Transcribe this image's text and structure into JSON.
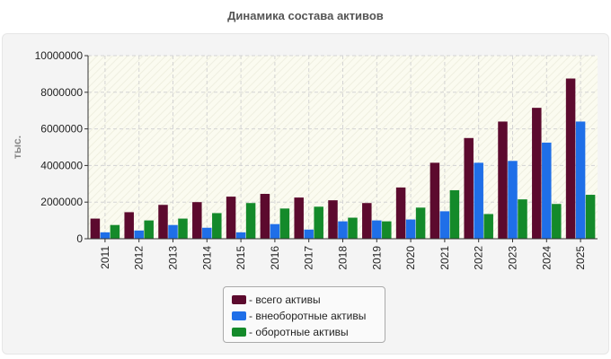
{
  "title": "Динамика состава активов",
  "chart_data": {
    "type": "bar",
    "title": "Динамика состава активов",
    "ylabel": "тыс.",
    "xlabel": "",
    "ylim": [
      0,
      10000000
    ],
    "yticks": [
      "0",
      "2000000",
      "4000000",
      "6000000",
      "8000000",
      "10000000"
    ],
    "categories": [
      "2011",
      "2012",
      "2013",
      "2014",
      "2015",
      "2016",
      "2017",
      "2018",
      "2019",
      "2020",
      "2021",
      "2022",
      "2023",
      "2024",
      "2025"
    ],
    "series": [
      {
        "name": "- всего активы",
        "color": "#5c0a2e",
        "values": [
          1100000,
          1450000,
          1850000,
          2000000,
          2300000,
          2450000,
          2250000,
          2100000,
          1950000,
          2800000,
          4150000,
          5500000,
          6400000,
          7150000,
          8750000
        ]
      },
      {
        "name": "- внеоборотные активы",
        "color": "#1f6fe8",
        "values": [
          350000,
          450000,
          750000,
          600000,
          350000,
          800000,
          500000,
          950000,
          1000000,
          1050000,
          1500000,
          4150000,
          4250000,
          5250000,
          6400000
        ]
      },
      {
        "name": "- оборотные активы",
        "color": "#148a2a",
        "values": [
          750000,
          1000000,
          1100000,
          1400000,
          1950000,
          1650000,
          1750000,
          1150000,
          950000,
          1700000,
          2650000,
          1350000,
          2150000,
          1900000,
          2400000
        ]
      }
    ],
    "grid": true,
    "legend_position": "bottom"
  }
}
